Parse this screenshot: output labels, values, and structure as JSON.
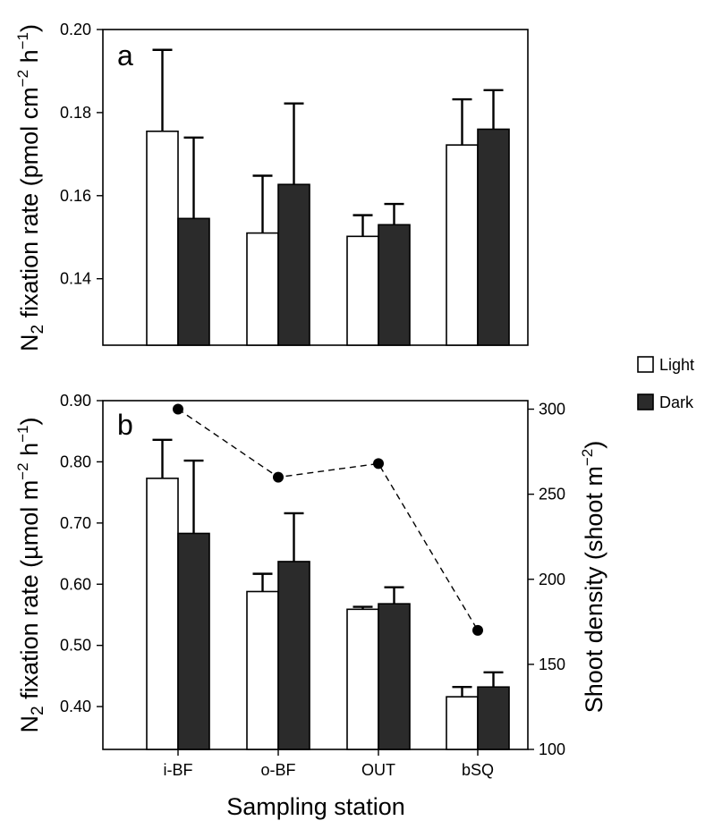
{
  "chart_data": [
    {
      "type": "bar",
      "panel": "a",
      "categories": [
        "i-BF",
        "o-BF",
        "OUT",
        "bSQ"
      ],
      "series": [
        {
          "name": "Light",
          "values": [
            0.1755,
            0.151,
            0.1502,
            0.1722
          ],
          "errors": [
            0.0196,
            0.0138,
            0.0051,
            0.011
          ]
        },
        {
          "name": "Dark",
          "values": [
            0.1545,
            0.1627,
            0.153,
            0.176
          ],
          "errors": [
            0.0195,
            0.0195,
            0.005,
            0.0094
          ]
        }
      ],
      "ylabel": {
        "base": "N",
        "sub": "2",
        "text": " fixation rate (pmol cm",
        "sup1": "−2",
        "mid": " h",
        "sup2": "−1",
        "end": ")"
      },
      "ylim": [
        0.124,
        0.2
      ],
      "yticks": [
        "0.20",
        "0.18",
        "0.16",
        "0.14"
      ],
      "ytick_values": [
        0.2,
        0.18,
        0.16,
        0.14
      ]
    },
    {
      "type": "bar",
      "panel": "b",
      "categories": [
        "i-BF",
        "o-BF",
        "OUT",
        "bSQ"
      ],
      "series": [
        {
          "name": "Light",
          "values": [
            0.773,
            0.588,
            0.559,
            0.416
          ],
          "errors": [
            0.063,
            0.029,
            0.004,
            0.016
          ]
        },
        {
          "name": "Dark",
          "values": [
            0.683,
            0.637,
            0.568,
            0.432
          ],
          "errors": [
            0.119,
            0.079,
            0.027,
            0.024
          ]
        }
      ],
      "secondary_series": {
        "name": "Shoot density",
        "style": "dashed line with points",
        "values": [
          300,
          260,
          268,
          170
        ]
      },
      "ylabel": {
        "base": "N",
        "sub": "2",
        "text": " fixation rate (µmol m",
        "sup1": "−2",
        "mid": " h",
        "sup2": "−1",
        "end": ")"
      },
      "y2label": {
        "text": "Shoot density (shoot m",
        "sup": "−2",
        "end": ")"
      },
      "ylim": [
        0.33,
        0.9
      ],
      "y2lim": [
        100,
        305
      ],
      "yticks": [
        "0.90",
        "0.80",
        "0.70",
        "0.60",
        "0.50",
        "0.40"
      ],
      "ytick_values": [
        0.9,
        0.8,
        0.7,
        0.6,
        0.5,
        0.4
      ],
      "y2ticks": [
        "300",
        "250",
        "200",
        "150",
        "100"
      ],
      "y2tick_values": [
        300,
        250,
        200,
        150,
        100
      ],
      "xlabel": "Sampling station"
    }
  ],
  "legend": {
    "items": [
      {
        "label": "Light",
        "color": "#ffffff"
      },
      {
        "label": "Dark",
        "color": "#2b2b2b"
      }
    ]
  }
}
